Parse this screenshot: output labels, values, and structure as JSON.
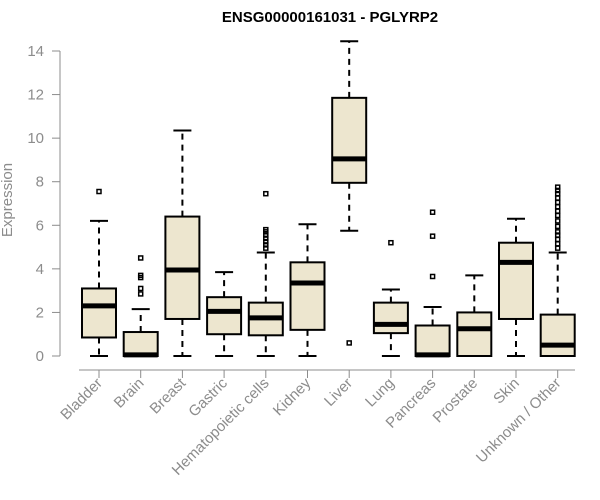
{
  "chart_data": {
    "type": "boxplot",
    "title": "ENSG00000161031 - PGLYRP2",
    "xlabel": "",
    "ylabel": "Expression",
    "ylim": [
      0,
      14.5
    ],
    "yticks": [
      "0",
      "2",
      "4",
      "6",
      "8",
      "10",
      "12",
      "14"
    ],
    "box_color": "#ede6cf",
    "grid": false,
    "categories": [
      "Bladder",
      "Brain",
      "Breast",
      "Gastric",
      "Hematopoietic cells",
      "Kidney",
      "Liver",
      "Lung",
      "Pancreas",
      "Prostate",
      "Skin",
      "Unknown / Other"
    ],
    "boxes": [
      {
        "min": 0.0,
        "q1": 0.85,
        "median": 2.3,
        "q3": 3.1,
        "max": 6.2,
        "outliers": [
          7.55
        ]
      },
      {
        "min": 0.0,
        "q1": 0.0,
        "median": 0.05,
        "q3": 1.1,
        "max": 2.15,
        "outliers": [
          2.85,
          3.1,
          3.6,
          3.7,
          4.5
        ]
      },
      {
        "min": 0.0,
        "q1": 1.7,
        "median": 3.95,
        "q3": 6.4,
        "max": 10.35,
        "outliers": []
      },
      {
        "min": 0.0,
        "q1": 1.0,
        "median": 2.05,
        "q3": 2.7,
        "max": 3.85,
        "outliers": []
      },
      {
        "min": 0.0,
        "q1": 0.95,
        "median": 1.75,
        "q3": 2.45,
        "max": 4.75,
        "outliers": [
          4.95,
          5.1,
          5.25,
          5.4,
          5.55,
          5.7,
          5.8,
          7.45
        ]
      },
      {
        "min": 0.0,
        "q1": 1.2,
        "median": 3.35,
        "q3": 4.3,
        "max": 6.05,
        "outliers": []
      },
      {
        "min": 5.75,
        "q1": 7.95,
        "median": 9.05,
        "q3": 11.85,
        "max": 14.45,
        "outliers": [
          0.6
        ]
      },
      {
        "min": 0.0,
        "q1": 1.05,
        "median": 1.45,
        "q3": 2.45,
        "max": 3.05,
        "outliers": [
          5.2
        ]
      },
      {
        "min": 0.0,
        "q1": 0.0,
        "median": 0.05,
        "q3": 1.4,
        "max": 2.25,
        "outliers": [
          3.65,
          5.5,
          6.6
        ]
      },
      {
        "min": 0.0,
        "q1": 0.0,
        "median": 1.25,
        "q3": 2.0,
        "max": 3.7,
        "outliers": []
      },
      {
        "min": 0.0,
        "q1": 1.7,
        "median": 4.3,
        "q3": 5.2,
        "max": 6.3,
        "outliers": []
      },
      {
        "min": 0.0,
        "q1": 0.0,
        "median": 0.5,
        "q3": 1.9,
        "max": 4.75,
        "outliers": [
          4.95,
          5.15,
          5.35,
          5.55,
          5.7,
          5.95,
          6.2,
          6.45,
          6.65,
          6.85,
          7.05,
          7.25,
          7.45,
          7.6,
          7.75
        ]
      }
    ]
  }
}
